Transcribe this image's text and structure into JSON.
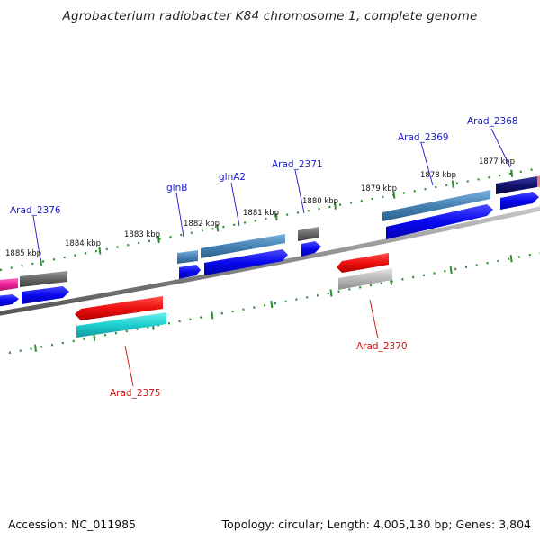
{
  "title": "Agrobacterium radiobacter K84 chromosome 1, complete genome",
  "footer": {
    "accession": "Accession: NC_011985",
    "summary": "Topology: circular; Length: 4,005,130 bp; Genes: 3,804"
  },
  "kbp_labels": [
    "1877 kbp",
    "1878 kbp",
    "1879 kbp",
    "1880 kbp",
    "1881 kbp",
    "1882 kbp",
    "1883 kbp",
    "1884 kbp",
    "1885 kbp"
  ],
  "genes": [
    {
      "name": "Arad_2368",
      "strand": "forward"
    },
    {
      "name": "Arad_2369",
      "strand": "forward"
    },
    {
      "name": "Arad_2370",
      "strand": "reverse"
    },
    {
      "name": "Arad_2371",
      "strand": "forward"
    },
    {
      "name": "glnA2",
      "strand": "forward"
    },
    {
      "name": "glnB",
      "strand": "forward"
    },
    {
      "name": "Arad_2375",
      "strand": "reverse"
    },
    {
      "name": "Arad_2376",
      "strand": "forward"
    }
  ],
  "colors": {
    "backbone": "#8a8a8a",
    "tick": "#2e8b2e",
    "forward_label": "#1a1acc",
    "reverse_label": "#cc1111",
    "cds_forward": "#0a0af0",
    "cds_reverse": "#ee1111",
    "feature_steel": "#4682b4",
    "feature_gray": "#666666",
    "feature_navy": "#12126e",
    "feature_cyan": "#1ecece",
    "feature_silver": "#b8b8b8",
    "feature_pink": "#ee2299"
  }
}
